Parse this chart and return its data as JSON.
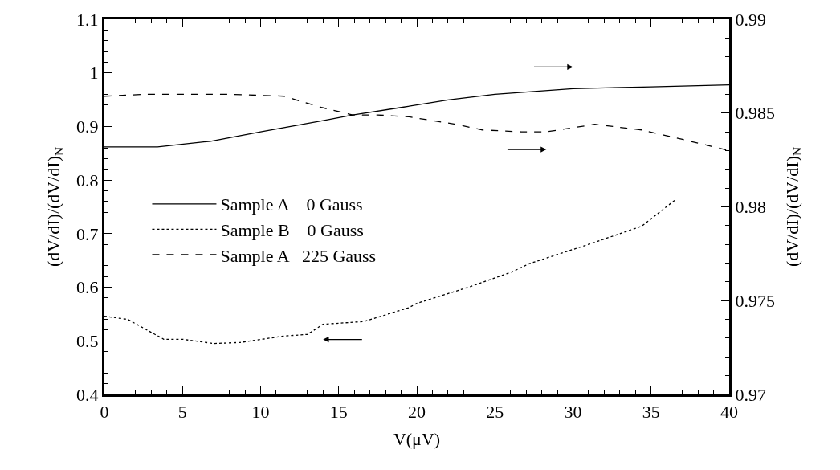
{
  "chart_data": {
    "type": "line",
    "xlabel": "V(μV)",
    "ylabel": "(dV/dI)/(dV/dI)$_{N}$",
    "y2label": "(dV/dI)/(dV/dI)$_{N}$",
    "xlim": [
      0,
      40
    ],
    "xticks": [
      0,
      5,
      10,
      15,
      20,
      25,
      30,
      35,
      40
    ],
    "ylim": [
      0.4,
      1.1
    ],
    "yticks": [
      0.4,
      0.5,
      0.6,
      0.7,
      0.8,
      0.9,
      1,
      1.1
    ],
    "y2lim": [
      0.97,
      0.99
    ],
    "y2ticks": [
      0.97,
      0.975,
      0.98,
      0.985,
      0.99
    ],
    "legend": "left",
    "marker": "none",
    "series": [
      {
        "name": "Sample A    0 Gauss",
        "color": "#000000",
        "line_style": "solid",
        "axis": "y2",
        "x": [
          0,
          3.4,
          6.8,
          10,
          14,
          15.9,
          19,
          22,
          25,
          30,
          35,
          40
        ],
        "values": [
          0.9832,
          0.9832,
          0.9835,
          0.984,
          0.9846,
          0.9849,
          0.9853,
          0.9857,
          0.986,
          0.9863,
          0.9864,
          0.9865
        ]
      },
      {
        "name": "Sample B    0 Gauss",
        "color": "#000000",
        "line_style": "dotted",
        "axis": "y",
        "x": [
          0,
          1.5,
          3.8,
          5,
          7,
          8.7,
          11.5,
          13,
          14,
          16.6,
          19.5,
          20,
          23.3,
          26.2,
          27.2,
          31,
          34.4,
          36.5
        ],
        "values": [
          0.546,
          0.54,
          0.503,
          0.503,
          0.495,
          0.497,
          0.509,
          0.512,
          0.531,
          0.536,
          0.562,
          0.57,
          0.6,
          0.63,
          0.644,
          0.68,
          0.714,
          0.762
        ]
      },
      {
        "name": "Sample A   225 Gauss",
        "color": "#000000",
        "line_style": "dashed",
        "axis": "y2",
        "x": [
          0,
          2.6,
          8.1,
          11.5,
          13.9,
          15.9,
          17.5,
          19.5,
          22.5,
          24.2,
          26.7,
          28.3,
          31.4,
          34.4,
          37,
          40
        ],
        "values": [
          0.9859,
          0.986,
          0.986,
          0.9859,
          0.9853,
          0.9849,
          0.9849,
          0.9848,
          0.9844,
          0.9841,
          0.984,
          0.984,
          0.9844,
          0.9841,
          0.9836,
          0.983
        ]
      }
    ]
  }
}
